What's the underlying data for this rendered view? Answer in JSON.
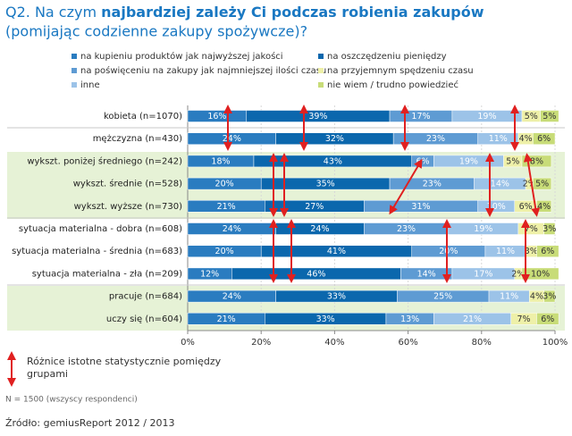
{
  "chart_data": {
    "type": "stacked-bar-horizontal",
    "title": [
      "Q2. Na czym ",
      "najbardziej zależy Ci podczas robienia zakupów"
    ],
    "subtitle": "(pomijając codzienne zakupy spożywcze)?",
    "categories": [
      "kobieta (n=1070)",
      "mężczyzna (n=430)",
      "wykszt. poniżej średniego (n=242)",
      "wykszt. średnie (n=528)",
      "wykszt. wyższe (n=730)",
      "sytuacja materialna - dobra (n=608)",
      "sytuacja materialna - średnia (n=683)",
      "sytuacja materialna - zła (n=209)",
      "pracuje (n=684)",
      "uczy się (n=604)"
    ],
    "series": [
      {
        "name": "na kupieniu produktów jak najwyższej jakości",
        "color": "#2a7cc0",
        "values": [
          16,
          24,
          18,
          20,
          21,
          24,
          20,
          12,
          24,
          21
        ],
        "value_labels": [
          "16%",
          "24%",
          "18%",
          "20%",
          "21%",
          "24%",
          "20%",
          "12%",
          "24%",
          "21%"
        ]
      },
      {
        "name": "na oszczędzeniu pieniędzy",
        "color": "#0b67ad",
        "values": [
          39,
          32,
          43,
          35,
          27,
          24,
          41,
          46,
          33,
          33
        ],
        "value_labels": [
          "39%",
          "32%",
          "43%",
          "35%",
          "27%",
          "24%",
          "41%",
          "46%",
          "33%",
          "33%"
        ]
      },
      {
        "name": "na poświęceniu na zakupy jak najmniejszej ilości czasu",
        "color": "#5e9bd3",
        "values": [
          17,
          23,
          6,
          23,
          31,
          23,
          20,
          14,
          25,
          13
        ],
        "value_labels": [
          "17%",
          "23%",
          "6%",
          "23%",
          "31%",
          "23%",
          "20%",
          "14%",
          "25%",
          "13%"
        ]
      },
      {
        "name": "inne",
        "color": "#9cc3e8",
        "values": [
          19,
          11,
          19,
          14,
          10,
          19,
          11,
          17,
          11,
          21
        ],
        "value_labels": [
          "19%",
          "11%",
          "19%",
          "14%",
          "10%",
          "19%",
          "11%",
          "17%",
          "11%",
          "21%"
        ]
      },
      {
        "name": "na przyjemnym spędzeniu czasu",
        "color": "#eef0a8",
        "values": [
          5,
          4,
          5,
          2,
          6,
          7,
          3,
          2,
          4,
          7
        ],
        "value_labels": [
          "5%",
          "4%",
          "5%",
          "2%",
          "6%",
          "7%",
          "3%",
          "2%",
          "4%",
          "7%"
        ]
      },
      {
        "name": "nie wiem / trudno powiedzieć",
        "color": "#c8dc78",
        "values": [
          5,
          6,
          8,
          5,
          4,
          3,
          6,
          10,
          3,
          6
        ],
        "value_labels": [
          "5%",
          "6%",
          "8%",
          "5%",
          "4%",
          "3%",
          "6%",
          "10%",
          "3%",
          "6%"
        ]
      }
    ],
    "xlim": [
      0,
      100
    ],
    "xticks": [
      {
        "value": 0,
        "label": "0%"
      },
      {
        "value": 20,
        "label": "20%"
      },
      {
        "value": 40,
        "label": "40%"
      },
      {
        "value": 60,
        "label": "60%"
      },
      {
        "value": 80,
        "label": "80%"
      },
      {
        "value": 100,
        "label": "100%"
      }
    ],
    "grid": true,
    "arrow_legend": "Różnice istotne statystycznie pomiędzy grupami",
    "note": "N = 1500 (wszyscy respondenci)",
    "source": "Źródło: gemiusReport 2012 / 2013"
  }
}
